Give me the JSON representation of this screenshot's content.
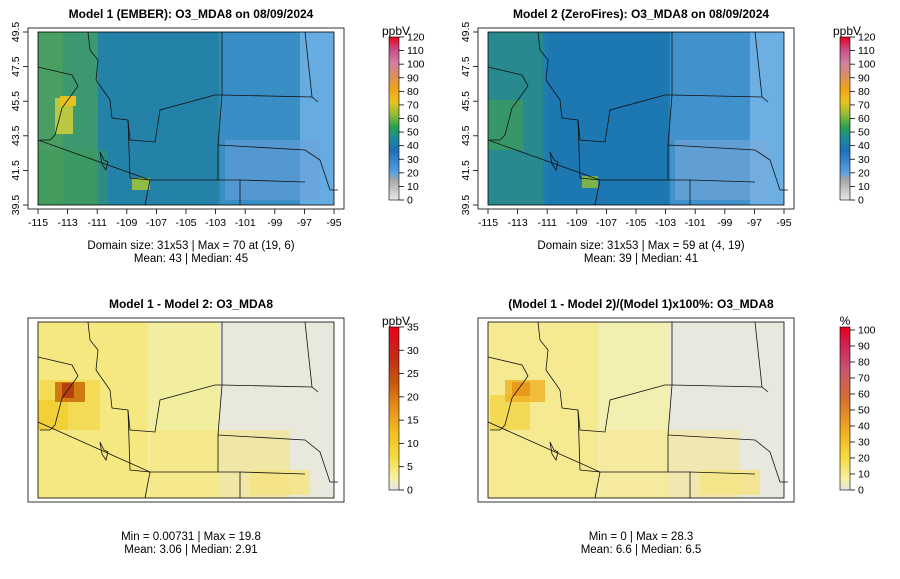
{
  "chart_data": [
    {
      "type": "heatmap",
      "title": "Model 1 (EMBER): O3_MDA8 on 08/09/2024",
      "variable": "O3_MDA8",
      "date": "08/09/2024",
      "x_ticks": [
        "-115",
        "-113",
        "-111",
        "-109",
        "-107",
        "-105",
        "-103",
        "-101",
        "-99",
        "-97",
        "-95"
      ],
      "y_ticks": [
        "39.5",
        "41.5",
        "43.5",
        "45.5",
        "47.5",
        "49.5"
      ],
      "xlim": [
        -115,
        -95
      ],
      "ylim": [
        39.5,
        49.5
      ],
      "colorbar": {
        "unit": "ppbV",
        "ticks": [
          "0",
          "10",
          "20",
          "30",
          "40",
          "50",
          "60",
          "70",
          "80",
          "90",
          "100",
          "110",
          "120"
        ],
        "range": [
          0,
          120
        ]
      },
      "stats": [
        "Domain size: 31x53 | Max = 70 at (19, 6)",
        "Mean: 43 |  Median: 45"
      ],
      "grid_size": [
        31,
        53
      ],
      "max": 70,
      "mean": 43,
      "median": 45
    },
    {
      "type": "heatmap",
      "title": "Model 2 (ZeroFires): O3_MDA8 on 08/09/2024",
      "variable": "O3_MDA8",
      "date": "08/09/2024",
      "x_ticks": [
        "-115",
        "-113",
        "-111",
        "-109",
        "-107",
        "-105",
        "-103",
        "-101",
        "-99",
        "-97",
        "-95"
      ],
      "y_ticks": [
        "39.5",
        "41.5",
        "43.5",
        "45.5",
        "47.5",
        "49.5"
      ],
      "xlim": [
        -115,
        -95
      ],
      "ylim": [
        39.5,
        49.5
      ],
      "colorbar": {
        "unit": "ppbV",
        "ticks": [
          "0",
          "10",
          "20",
          "30",
          "40",
          "50",
          "60",
          "70",
          "80",
          "90",
          "100",
          "110",
          "120"
        ],
        "range": [
          0,
          120
        ]
      },
      "stats": [
        "Domain size: 31x53 | Max = 59 at (4, 19)",
        "Mean: 39 |  Median: 41"
      ],
      "grid_size": [
        31,
        53
      ],
      "max": 59,
      "mean": 39,
      "median": 41
    },
    {
      "type": "heatmap",
      "title": "Model 1 - Model 2: O3_MDA8",
      "colorbar": {
        "unit": "ppbV",
        "ticks": [
          "0",
          "5",
          "10",
          "15",
          "20",
          "25",
          "30",
          "35"
        ],
        "range": [
          0,
          35
        ]
      },
      "stats": [
        "Min = 0.00731 | Max = 19.8",
        "Mean: 3.06 |  Median: 2.91"
      ],
      "min": 0.00731,
      "max": 19.8,
      "mean": 3.06,
      "median": 2.91
    },
    {
      "type": "heatmap",
      "title": "(Model 1 - Model 2)/(Model 1)x100%: O3_MDA8",
      "colorbar": {
        "unit": "%",
        "ticks": [
          "0",
          "10",
          "20",
          "30",
          "40",
          "50",
          "60",
          "70",
          "80",
          "90",
          "100"
        ],
        "range": [
          0,
          100
        ]
      },
      "stats": [
        "Min = 0 | Max = 28.3",
        "Mean: 6.6 |  Median: 6.5"
      ],
      "min": 0,
      "max": 28.3,
      "mean": 6.6,
      "median": 6.5
    }
  ],
  "colors": {
    "ozone_scale": [
      "#bdbdbd",
      "#bdbdbd",
      "#3c8fd0",
      "#1f77b4",
      "#1f7fa8",
      "#2e9a4a",
      "#86b93c",
      "#e6c31e",
      "#f0a01a",
      "#e08a3a",
      "#d07090",
      "#c8508a",
      "#e0001a"
    ],
    "diff_scale": [
      "#e6e6e6",
      "#faef9a",
      "#f5dc40",
      "#f0c020",
      "#e8901a",
      "#c85a10",
      "#c03010",
      "#e0001a"
    ]
  }
}
